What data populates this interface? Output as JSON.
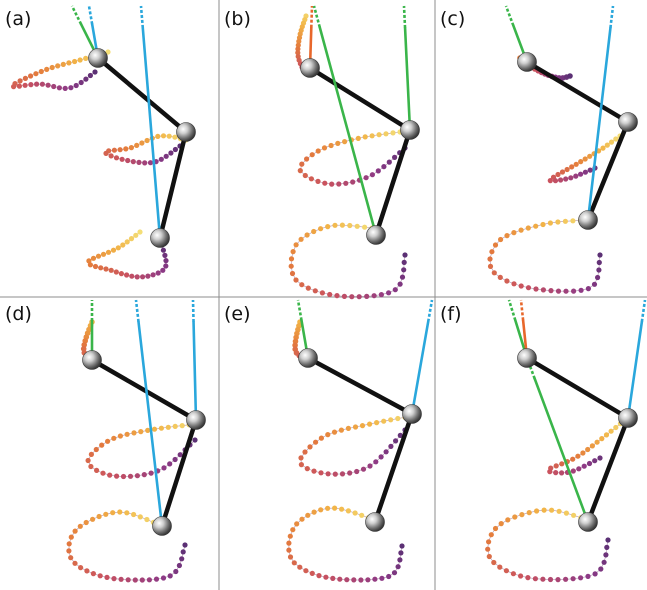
{
  "panels": [
    {
      "label": "(a)"
    },
    {
      "label": "(b)"
    },
    {
      "label": "(c)"
    },
    {
      "label": "(d)"
    },
    {
      "label": "(e)"
    },
    {
      "label": "(f)"
    }
  ],
  "colors": {
    "background": "#ffffff",
    "divider": "#8c8c8c",
    "link": "#111111",
    "blue_line": "#2aa7dc",
    "green_line": "#3ab54a",
    "orange_line": "#e8672b",
    "trail_gradient": [
      "#f4ec86",
      "#f2b447",
      "#e47b3c",
      "#c9525f",
      "#8e3a86",
      "#4a2d6e"
    ]
  }
}
